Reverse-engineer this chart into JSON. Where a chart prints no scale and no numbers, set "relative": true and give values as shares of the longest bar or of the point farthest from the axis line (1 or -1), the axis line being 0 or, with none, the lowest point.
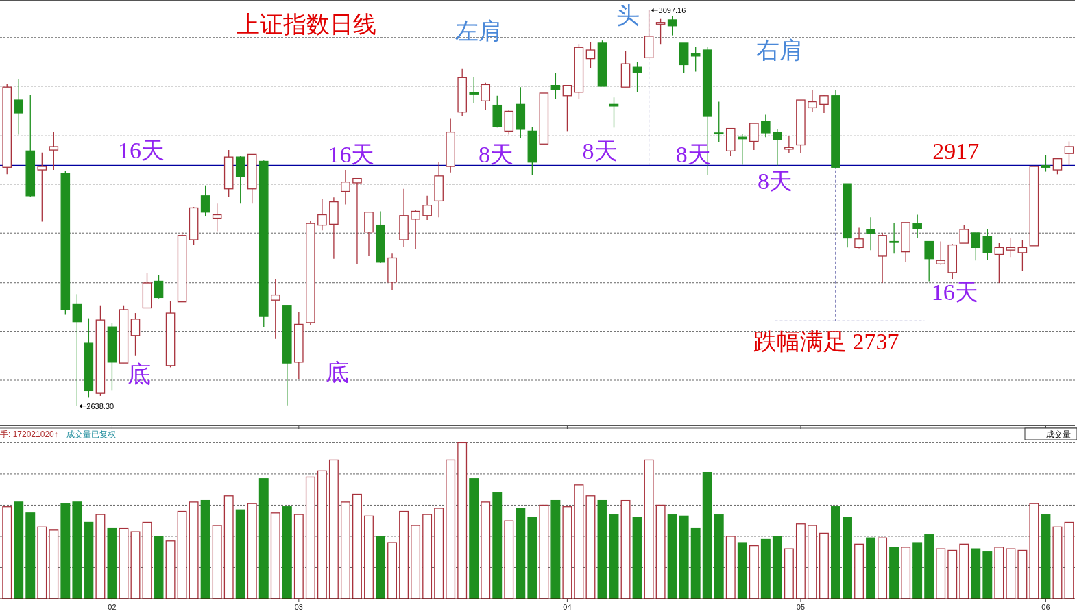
{
  "chart_data": [
    {
      "type": "candlestick",
      "title": "上证指数日线",
      "categories": [
        null,
        null,
        null,
        null,
        null,
        null,
        null,
        null,
        null,
        "02",
        null,
        null,
        null,
        null,
        null,
        null,
        null,
        null,
        null,
        null,
        null,
        null,
        null,
        null,
        null,
        "03",
        null,
        null,
        null,
        null,
        null,
        null,
        null,
        null,
        null,
        null,
        null,
        null,
        null,
        null,
        null,
        null,
        null,
        null,
        null,
        null,
        null,
        null,
        "04",
        null,
        null,
        null,
        null,
        null,
        null,
        null,
        null,
        null,
        null,
        null,
        null,
        null,
        null,
        null,
        null,
        null,
        null,
        null,
        "05",
        null,
        null,
        null,
        null,
        null,
        null,
        null,
        null,
        null,
        null,
        null,
        null,
        null,
        null,
        null,
        null,
        null,
        null,
        null,
        null,
        "06",
        null,
        null
      ],
      "ohlc": [
        [
          2915,
          3012,
          2907,
          3008
        ],
        [
          2993,
          3017,
          2953,
          2978
        ],
        [
          2934,
          2999,
          2881,
          2882
        ],
        [
          2912,
          2932,
          2852,
          2916
        ],
        [
          2935,
          2956,
          2912,
          2939
        ],
        [
          2908,
          2911,
          2744,
          2750
        ],
        [
          2756,
          2768,
          2638.3,
          2736
        ],
        [
          2711,
          2740,
          2648,
          2656
        ],
        [
          2653,
          2755,
          2650,
          2738
        ],
        [
          2730,
          2735,
          2656,
          2689
        ],
        [
          2688,
          2755,
          2688,
          2750
        ],
        [
          2720,
          2746,
          2697,
          2739
        ],
        [
          2752,
          2793,
          2752,
          2781
        ],
        [
          2783,
          2790,
          2763,
          2764
        ],
        [
          2685,
          2760,
          2683,
          2746
        ],
        [
          2759,
          2840,
          2759,
          2836
        ],
        [
          2831,
          2869,
          2825,
          2868
        ],
        [
          2882,
          2894,
          2858,
          2863
        ],
        [
          2856,
          2873,
          2841,
          2860
        ],
        [
          2890,
          2935,
          2881,
          2927
        ],
        [
          2927,
          2928,
          2873,
          2904
        ],
        [
          2890,
          2930,
          2873,
          2930
        ],
        [
          2922,
          2923,
          2730,
          2742
        ],
        [
          2761,
          2785,
          2716,
          2767
        ],
        [
          2755,
          2755,
          2639,
          2688
        ],
        [
          2689,
          2747,
          2669,
          2733
        ],
        [
          2735,
          2853,
          2732,
          2850
        ],
        [
          2848,
          2878,
          2842,
          2860
        ],
        [
          2849,
          2880,
          2809,
          2875
        ],
        [
          2887,
          2912,
          2872,
          2898
        ],
        [
          2897,
          2902,
          2803,
          2902
        ],
        [
          2840,
          2863,
          2812,
          2863
        ],
        [
          2848,
          2864,
          2804,
          2805
        ],
        [
          2782,
          2815,
          2773,
          2810
        ],
        [
          2831,
          2890,
          2823,
          2859
        ],
        [
          2855,
          2866,
          2820,
          2864
        ],
        [
          2859,
          2882,
          2854,
          2871
        ],
        [
          2876,
          2921,
          2857,
          2905
        ],
        [
          2916,
          2972,
          2909,
          2956
        ],
        [
          2979,
          3029,
          2974,
          3019
        ],
        [
          3002,
          3020,
          2989,
          3000
        ],
        [
          2992,
          3013,
          2982,
          3011
        ],
        [
          2987,
          2998,
          2961,
          2962
        ],
        [
          2957,
          2982,
          2953,
          2980
        ],
        [
          2988,
          3008,
          2949,
          2959
        ],
        [
          2957,
          2962,
          2906,
          2921
        ],
        [
          2942,
          3001,
          2942,
          3001
        ],
        [
          3010,
          3024,
          2994,
          3005
        ],
        [
          2998,
          3010,
          2957,
          3010
        ],
        [
          3002,
          3058,
          2994,
          3054
        ],
        [
          3041,
          3060,
          3030,
          3051
        ],
        [
          3059,
          3062,
          3009,
          3009
        ],
        [
          2988,
          2996,
          2961,
          2986
        ],
        [
          3008,
          3050,
          3008,
          3035
        ],
        [
          3031,
          3037,
          3002,
          3025
        ],
        [
          3042,
          3097.16,
          3042,
          3067
        ],
        [
          3081,
          3087,
          3058,
          3083
        ],
        [
          3086,
          3090,
          3068,
          3079
        ],
        [
          3059,
          3059,
          3024,
          3034
        ],
        [
          3047,
          3055,
          3026,
          3044
        ],
        [
          3051,
          3055,
          2906,
          2974
        ],
        [
          2955,
          2991,
          2944,
          2954
        ],
        [
          2934,
          2960,
          2928,
          2960
        ],
        [
          2950,
          2954,
          2918,
          2948
        ],
        [
          2945,
          2966,
          2935,
          2966
        ],
        [
          2968,
          2976,
          2950,
          2955
        ],
        [
          2956,
          2959,
          2917,
          2947
        ],
        [
          2936,
          2951,
          2931,
          2938
        ],
        [
          2941,
          2993,
          2931,
          2993
        ],
        [
          2984,
          3005,
          2979,
          2991
        ],
        [
          2988,
          2999,
          2978,
          2998
        ],
        [
          2998,
          3005,
          2915,
          2915
        ],
        [
          2896,
          2896,
          2822,
          2833
        ],
        [
          2822,
          2845,
          2821,
          2832
        ],
        [
          2843,
          2857,
          2819,
          2838
        ],
        [
          2812,
          2839,
          2781,
          2836
        ],
        [
          2829,
          2850,
          2815,
          2828
        ],
        [
          2817,
          2851,
          2805,
          2851
        ],
        [
          2850,
          2860,
          2833,
          2844
        ],
        [
          2829,
          2829,
          2783,
          2809
        ],
        [
          2803,
          2829,
          2802,
          2807
        ],
        [
          2793,
          2826,
          2785,
          2825
        ],
        [
          2827,
          2848,
          2827,
          2843
        ],
        [
          2839,
          2839,
          2807,
          2822
        ],
        [
          2835,
          2843,
          2808,
          2816
        ],
        [
          2814,
          2827,
          2781,
          2822
        ],
        [
          2819,
          2833,
          2811,
          2822
        ],
        [
          2816,
          2831,
          2795,
          2822
        ],
        [
          2824,
          2917,
          2824,
          2916
        ],
        [
          2917,
          2929,
          2910,
          2915
        ],
        [
          2912,
          2926,
          2907,
          2925
        ],
        [
          2931,
          2945,
          2917,
          2939
        ]
      ],
      "colors": [
        "#a8323c",
        "#1f901f",
        "#1f901f",
        "#a8323c",
        "#a8323c",
        "#1f901f",
        "#1f901f",
        "#1f901f",
        "#a8323c",
        "#1f901f",
        "#a8323c",
        "#a8323c",
        "#a8323c",
        "#1f901f",
        "#a8323c",
        "#a8323c",
        "#a8323c",
        "#1f901f",
        "#a8323c",
        "#a8323c",
        "#1f901f",
        "#a8323c",
        "#1f901f",
        "#a8323c",
        "#1f901f",
        "#a8323c",
        "#a8323c",
        "#a8323c",
        "#a8323c",
        "#a8323c",
        "#a8323c",
        "#a8323c",
        "#1f901f",
        "#a8323c",
        "#a8323c",
        "#a8323c",
        "#a8323c",
        "#a8323c",
        "#a8323c",
        "#a8323c",
        "#1f901f",
        "#a8323c",
        "#1f901f",
        "#a8323c",
        "#1f901f",
        "#1f901f",
        "#a8323c",
        "#1f901f",
        "#a8323c",
        "#a8323c",
        "#a8323c",
        "#1f901f",
        "#1f901f",
        "#a8323c",
        "#1f901f",
        "#a8323c",
        "#a8323c",
        "#1f901f",
        "#1f901f",
        "#1f901f",
        "#1f901f",
        "#1f901f",
        "#a8323c",
        "#1f901f",
        "#a8323c",
        "#1f901f",
        "#1f901f",
        "#a8323c",
        "#a8323c",
        "#a8323c",
        "#a8323c",
        "#1f901f",
        "#1f901f",
        "#a8323c",
        "#1f901f",
        "#a8323c",
        "#1f901f",
        "#a8323c",
        "#1f901f",
        "#1f901f",
        "#a8323c",
        "#a8323c",
        "#a8323c",
        "#1f901f",
        "#1f901f",
        "#a8323c",
        "#a8323c",
        "#a8323c",
        "#a8323c",
        "#1f901f",
        "#a8323c",
        "#a8323c"
      ],
      "ylim": [
        2615,
        3109
      ],
      "yticks": [
        {
          "value": 3065.5,
          "label": null
        },
        {
          "value": 3009.1,
          "label": null
        },
        {
          "value": 2951.5,
          "label": null
        },
        {
          "value": 2895.5,
          "label": null
        },
        {
          "value": 2838.8,
          "label": null
        },
        {
          "value": 2781.2,
          "label": null
        },
        {
          "value": 2724.9,
          "label": null
        },
        {
          "value": 2668.2,
          "label": null
        }
      ],
      "grid": "y",
      "tick_labels": false,
      "ref_lines": [
        {
          "axis": "y",
          "value": 2917,
          "label": "2917",
          "color": "#0000a0",
          "line_style": "solid"
        },
        {
          "axis": "y",
          "value": 2737,
          "label": "跌幅满足 2737",
          "color": "#1a1a80",
          "line_style": "dashed"
        }
      ],
      "annotations": [
        "左肩",
        "头",
        "右肩",
        "16天",
        "16天",
        "8天",
        "8天",
        "8天",
        "8天",
        "16天",
        "底",
        "底",
        "3097.16",
        "2638.30"
      ]
    },
    {
      "type": "bar",
      "relative": true,
      "categories": [
        null,
        null,
        null,
        null,
        null,
        null,
        null,
        null,
        null,
        "02",
        null,
        null,
        null,
        null,
        null,
        null,
        null,
        null,
        null,
        null,
        null,
        null,
        null,
        null,
        null,
        "03",
        null,
        null,
        null,
        null,
        null,
        null,
        null,
        null,
        null,
        null,
        null,
        null,
        null,
        null,
        null,
        null,
        null,
        null,
        null,
        null,
        null,
        null,
        "04",
        null,
        null,
        null,
        null,
        null,
        null,
        null,
        null,
        null,
        null,
        null,
        null,
        null,
        null,
        null,
        null,
        null,
        null,
        null,
        "05",
        null,
        null,
        null,
        null,
        null,
        null,
        null,
        null,
        null,
        null,
        null,
        null,
        null,
        null,
        null,
        null,
        null,
        null,
        null,
        null,
        "06",
        null,
        null
      ],
      "values": [
        0.59,
        0.62,
        0.55,
        0.46,
        0.44,
        0.61,
        0.62,
        0.49,
        0.54,
        0.45,
        0.45,
        0.43,
        0.49,
        0.4,
        0.37,
        0.56,
        0.62,
        0.63,
        0.47,
        0.66,
        0.57,
        0.61,
        0.77,
        0.55,
        0.59,
        0.54,
        0.78,
        0.82,
        0.89,
        0.62,
        0.67,
        0.53,
        0.4,
        0.36,
        0.56,
        0.47,
        0.54,
        0.58,
        0.89,
        1,
        0.77,
        0.62,
        0.68,
        0.5,
        0.58,
        0.52,
        0.6,
        0.63,
        0.59,
        0.73,
        0.66,
        0.63,
        0.54,
        0.63,
        0.52,
        0.89,
        0.6,
        0.54,
        0.53,
        0.45,
        0.81,
        0.54,
        0.4,
        0.36,
        0.34,
        0.38,
        0.4,
        0.32,
        0.48,
        0.47,
        0.42,
        0.59,
        0.52,
        0.35,
        0.39,
        0.39,
        0.33,
        0.33,
        0.36,
        0.41,
        0.32,
        0.31,
        0.35,
        0.32,
        0.3,
        0.33,
        0.32,
        0.31,
        0.61,
        0.54,
        0.46,
        0.49
      ],
      "colors": [
        "#a8323c",
        "#1f901f",
        "#1f901f",
        "#a8323c",
        "#a8323c",
        "#1f901f",
        "#1f901f",
        "#1f901f",
        "#a8323c",
        "#1f901f",
        "#a8323c",
        "#a8323c",
        "#a8323c",
        "#1f901f",
        "#a8323c",
        "#a8323c",
        "#a8323c",
        "#1f901f",
        "#a8323c",
        "#a8323c",
        "#1f901f",
        "#a8323c",
        "#1f901f",
        "#a8323c",
        "#1f901f",
        "#a8323c",
        "#a8323c",
        "#a8323c",
        "#a8323c",
        "#a8323c",
        "#a8323c",
        "#a8323c",
        "#1f901f",
        "#a8323c",
        "#a8323c",
        "#a8323c",
        "#a8323c",
        "#a8323c",
        "#a8323c",
        "#a8323c",
        "#1f901f",
        "#a8323c",
        "#1f901f",
        "#a8323c",
        "#1f901f",
        "#1f901f",
        "#a8323c",
        "#1f901f",
        "#a8323c",
        "#a8323c",
        "#a8323c",
        "#1f901f",
        "#1f901f",
        "#a8323c",
        "#1f901f",
        "#a8323c",
        "#a8323c",
        "#1f901f",
        "#1f901f",
        "#1f901f",
        "#1f901f",
        "#1f901f",
        "#a8323c",
        "#1f901f",
        "#a8323c",
        "#1f901f",
        "#1f901f",
        "#a8323c",
        "#a8323c",
        "#a8323c",
        "#a8323c",
        "#1f901f",
        "#1f901f",
        "#a8323c",
        "#1f901f",
        "#a8323c",
        "#1f901f",
        "#a8323c",
        "#1f901f",
        "#1f901f",
        "#a8323c",
        "#a8323c",
        "#a8323c",
        "#1f901f",
        "#1f901f",
        "#a8323c",
        "#a8323c",
        "#a8323c",
        "#a8323c",
        "#1f901f",
        "#a8323c",
        "#a8323c"
      ],
      "grid": "y",
      "annotations": [
        "手: 172021020↑",
        "成交量已复权",
        "成交量"
      ]
    }
  ]
}
